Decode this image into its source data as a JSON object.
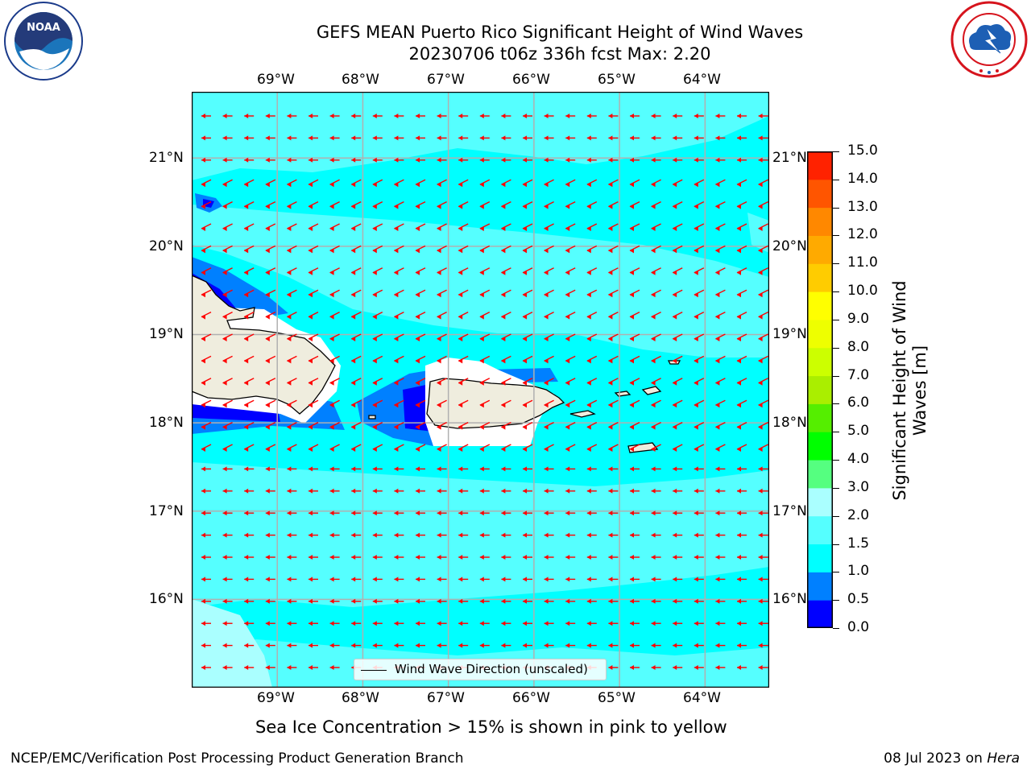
{
  "title": {
    "line1": "GEFS MEAN Puerto Rico Significant Height of Wind Waves",
    "line2": "20230706 t06z 336h fcst   Max: 2.20"
  },
  "logos": {
    "left": {
      "name": "noaa-logo-icon",
      "text": "NOAA"
    },
    "right": {
      "name": "national-weather-service-logo-icon"
    }
  },
  "map": {
    "lon_labels": [
      "69°W",
      "68°W",
      "67°W",
      "66°W",
      "65°W",
      "64°W"
    ],
    "lat_labels": [
      "21°N",
      "20°N",
      "19°N",
      "18°N",
      "17°N",
      "16°N"
    ],
    "lon_range": [
      -70.0,
      -63.25
    ],
    "lat_range": [
      15.0,
      21.75
    ],
    "ocean_color": "#00ffff",
    "light_color": "#55ffff",
    "land_color": "#efedde",
    "arrow_color": "#ff0000",
    "grid": true
  },
  "legend": {
    "label": "Wind Wave Direction (unscaled)"
  },
  "colorbar": {
    "title": "Significant Height of Wind Waves [m]",
    "levels": [
      "0.0",
      "0.5",
      "1.0",
      "1.5",
      "2.0",
      "3.0",
      "4.0",
      "5.0",
      "6.0",
      "7.0",
      "8.0",
      "9.0",
      "10.0",
      "11.0",
      "12.0",
      "13.0",
      "14.0",
      "15.0"
    ],
    "colors": [
      "#0000ff",
      "#0080ff",
      "#00ffff",
      "#55ffff",
      "#aaffff",
      "#55ff80",
      "#00ff00",
      "#55ee00",
      "#aaee00",
      "#ccff00",
      "#eeff00",
      "#ffff00",
      "#ffcc00",
      "#ffaa00",
      "#ff8800",
      "#ff5500",
      "#ff2200"
    ]
  },
  "subtitle": "Sea Ice Concentration > 15% is shown in pink to yellow",
  "footer": {
    "left": "NCEP/EMC/Verification Post Processing Product Generation Branch",
    "right_date": "08 Jul 2023 on ",
    "right_host": "Hera"
  }
}
